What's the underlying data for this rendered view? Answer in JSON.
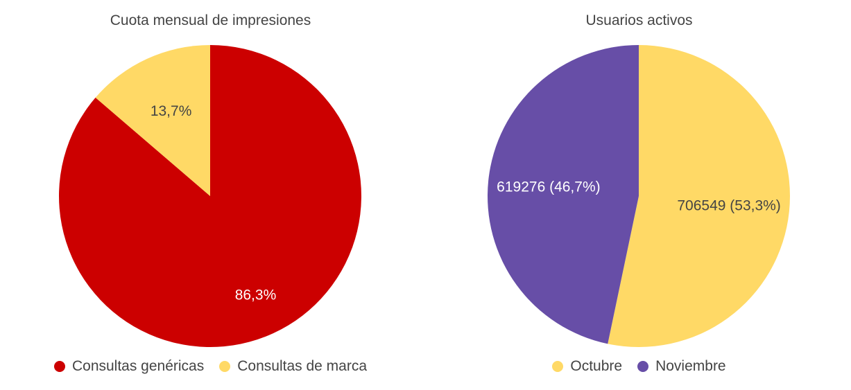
{
  "charts": [
    {
      "title": "Cuota mensual de impresiones",
      "legend": [
        {
          "label": "Consultas genéricas",
          "color": "#cc0000"
        },
        {
          "label": "Consultas de marca",
          "color": "#ffd966"
        }
      ]
    },
    {
      "title": "Usuarios activos",
      "legend": [
        {
          "label": "Octubre",
          "color": "#ffd966"
        },
        {
          "label": "Noviembre",
          "color": "#674ea7"
        }
      ]
    }
  ],
  "chart_data": [
    {
      "type": "pie",
      "title": "Cuota mensual de impresiones",
      "categories": [
        "Consultas genéricas",
        "Consultas de marca"
      ],
      "values": [
        86.3,
        13.7
      ],
      "labels": [
        "86,3%",
        "13,7%"
      ],
      "colors": [
        "#cc0000",
        "#ffd966"
      ],
      "label_colors": [
        "#ffffff",
        "#444444"
      ],
      "legend_position": "bottom"
    },
    {
      "type": "pie",
      "title": "Usuarios activos",
      "categories": [
        "Octubre",
        "Noviembre"
      ],
      "values": [
        706549,
        619276
      ],
      "percentages": [
        53.3,
        46.7
      ],
      "labels": [
        "706549 (53,3%)",
        "619276 (46,7%)"
      ],
      "colors": [
        "#ffd966",
        "#674ea7"
      ],
      "label_colors": [
        "#444444",
        "#ffffff"
      ],
      "legend_position": "bottom"
    }
  ]
}
